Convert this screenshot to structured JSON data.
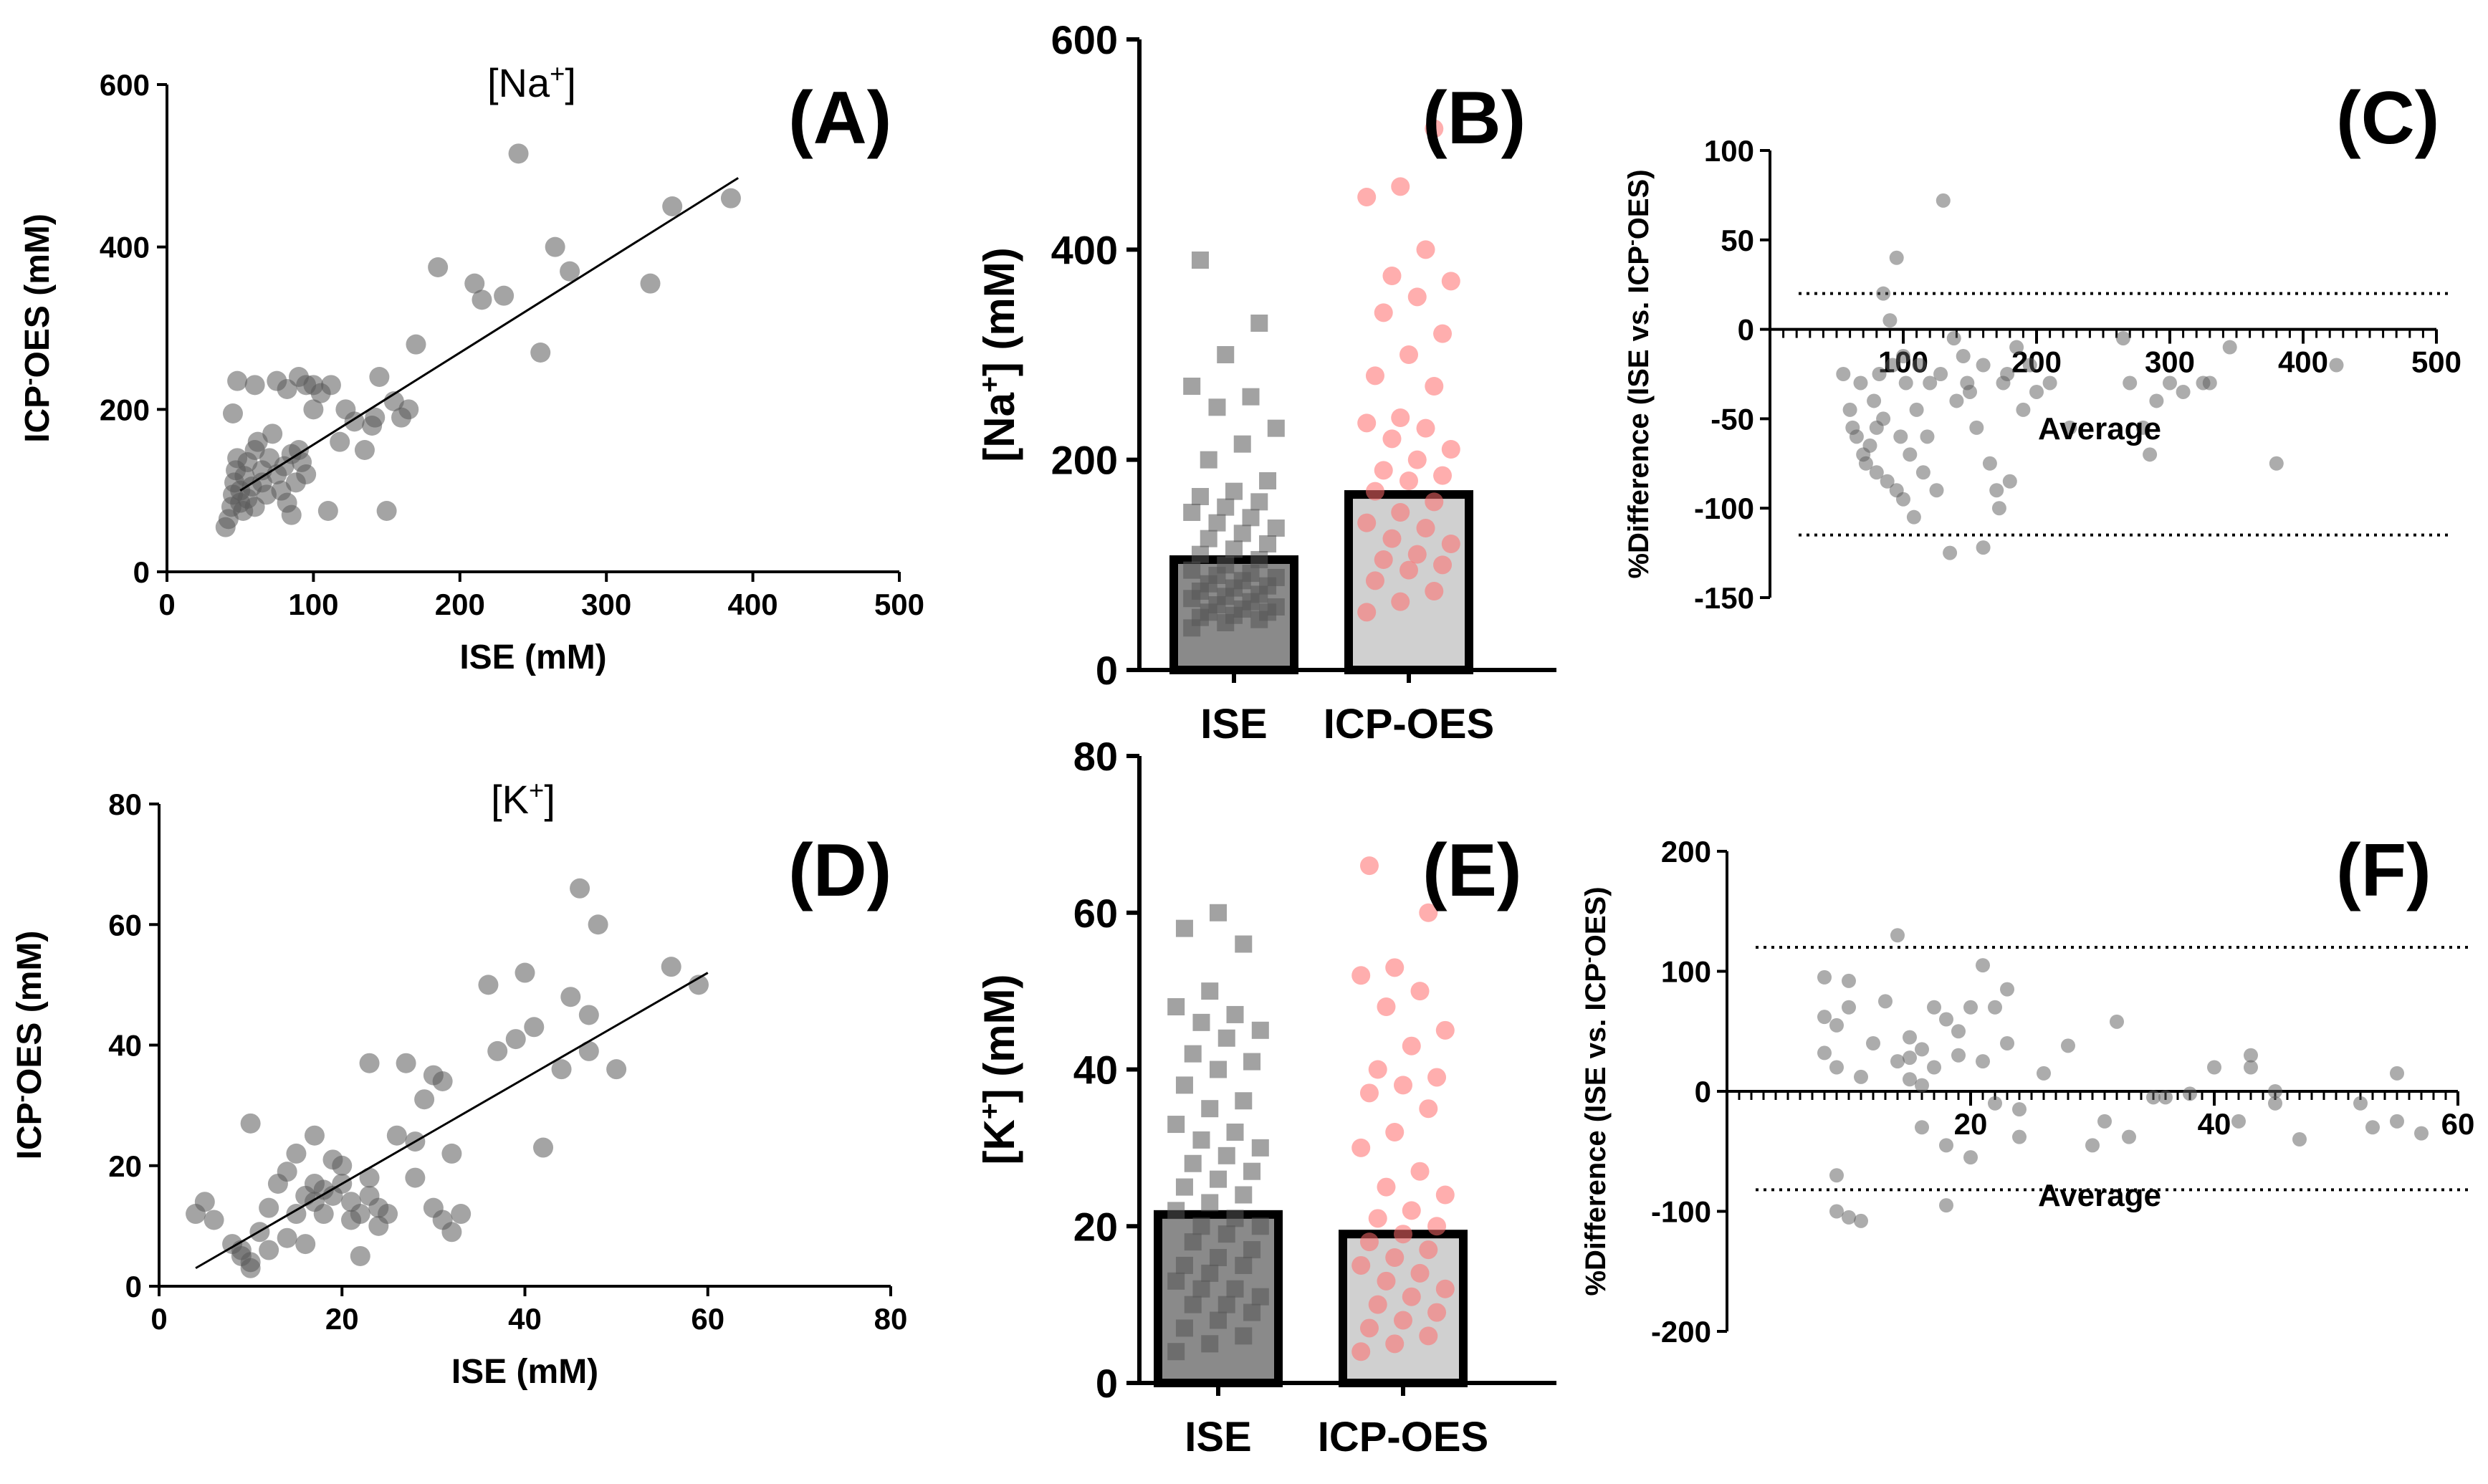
{
  "colors": {
    "axis": "#000000",
    "ise_point": "#555555",
    "icp_point": "#ff6b6b",
    "ise_bar": "#8a8a8a",
    "icp_bar": "#d0d0d0",
    "scatter_point": "#5a5a5a"
  },
  "chart_data": [
    {
      "panel": "(A)",
      "type": "scatter",
      "title": "[Na+]",
      "xlabel": "ISE (mM)",
      "ylabel": "ICP-OES (mM)",
      "xlim": [
        0,
        500
      ],
      "ylim": [
        0,
        600
      ],
      "xticks": [
        0,
        100,
        200,
        300,
        400,
        500
      ],
      "yticks": [
        0,
        200,
        400,
        600
      ],
      "regression": {
        "x0": 50,
        "y0": 100,
        "x1": 390,
        "y1": 485
      },
      "points": [
        [
          40,
          55
        ],
        [
          42,
          65
        ],
        [
          44,
          80
        ],
        [
          45,
          95
        ],
        [
          46,
          110
        ],
        [
          47,
          125
        ],
        [
          48,
          140
        ],
        [
          50,
          85
        ],
        [
          50,
          100
        ],
        [
          52,
          75
        ],
        [
          53,
          118
        ],
        [
          55,
          90
        ],
        [
          55,
          135
        ],
        [
          58,
          105
        ],
        [
          60,
          80
        ],
        [
          60,
          150
        ],
        [
          62,
          160
        ],
        [
          65,
          110
        ],
        [
          65,
          125
        ],
        [
          68,
          95
        ],
        [
          70,
          140
        ],
        [
          72,
          170
        ],
        [
          75,
          120
        ],
        [
          78,
          100
        ],
        [
          80,
          130
        ],
        [
          82,
          85
        ],
        [
          85,
          145
        ],
        [
          85,
          70
        ],
        [
          88,
          110
        ],
        [
          90,
          150
        ],
        [
          92,
          135
        ],
        [
          95,
          120
        ],
        [
          95,
          230
        ],
        [
          100,
          200
        ],
        [
          105,
          220
        ],
        [
          110,
          75
        ],
        [
          112,
          230
        ],
        [
          118,
          160
        ],
        [
          122,
          200
        ],
        [
          128,
          185
        ],
        [
          135,
          150
        ],
        [
          140,
          180
        ],
        [
          142,
          190
        ],
        [
          145,
          240
        ],
        [
          150,
          75
        ],
        [
          155,
          210
        ],
        [
          160,
          190
        ],
        [
          165,
          200
        ],
        [
          170,
          280
        ],
        [
          185,
          375
        ],
        [
          210,
          355
        ],
        [
          215,
          335
        ],
        [
          230,
          340
        ],
        [
          240,
          515
        ],
        [
          255,
          270
        ],
        [
          265,
          400
        ],
        [
          275,
          370
        ],
        [
          330,
          355
        ],
        [
          345,
          450
        ],
        [
          385,
          460
        ],
        [
          48,
          235
        ],
        [
          60,
          230
        ],
        [
          75,
          235
        ],
        [
          82,
          225
        ],
        [
          90,
          240
        ],
        [
          45,
          195
        ],
        [
          100,
          230
        ]
      ]
    },
    {
      "panel": "(B)",
      "type": "bar",
      "ylabel": "[Na+] (mM)",
      "categories": [
        "ISE",
        "ICP-OES"
      ],
      "values": [
        105,
        167
      ],
      "ylim": [
        0,
        600
      ],
      "yticks": [
        0,
        200,
        400,
        600
      ],
      "series_points": {
        "ISE": [
          40,
          45,
          48,
          50,
          52,
          55,
          55,
          58,
          60,
          62,
          65,
          68,
          70,
          72,
          75,
          78,
          80,
          82,
          85,
          88,
          90,
          92,
          95,
          100,
          105,
          110,
          115,
          120,
          125,
          130,
          135,
          140,
          145,
          150,
          155,
          160,
          165,
          170,
          180,
          200,
          215,
          230,
          250,
          260,
          270,
          300,
          330,
          390
        ],
        "ICP-OES": [
          55,
          65,
          75,
          85,
          95,
          100,
          105,
          110,
          120,
          125,
          135,
          140,
          150,
          160,
          170,
          180,
          185,
          190,
          200,
          210,
          220,
          230,
          235,
          240,
          270,
          280,
          300,
          320,
          340,
          355,
          370,
          375,
          400,
          450,
          460,
          515
        ]
      }
    },
    {
      "panel": "(C)",
      "type": "scatter",
      "xlabel": "Average",
      "ylabel": "%Difference (ISE vs. ICP-OES)",
      "xlim": [
        0,
        500
      ],
      "ylim": [
        -150,
        100
      ],
      "xticks": [
        100,
        200,
        300,
        400,
        500
      ],
      "yticks": [
        -150,
        -100,
        -50,
        0,
        50,
        100
      ],
      "ref_lines": [
        20,
        -115
      ],
      "points": [
        [
          55,
          -25
        ],
        [
          60,
          -45
        ],
        [
          62,
          -55
        ],
        [
          65,
          -60
        ],
        [
          68,
          -30
        ],
        [
          70,
          -70
        ],
        [
          72,
          -75
        ],
        [
          75,
          -65
        ],
        [
          78,
          -40
        ],
        [
          80,
          -55
        ],
        [
          80,
          -80
        ],
        [
          82,
          -25
        ],
        [
          85,
          20
        ],
        [
          85,
          -50
        ],
        [
          88,
          -85
        ],
        [
          90,
          5
        ],
        [
          92,
          -20
        ],
        [
          95,
          -90
        ],
        [
          95,
          40
        ],
        [
          98,
          -60
        ],
        [
          100,
          -95
        ],
        [
          100,
          -15
        ],
        [
          102,
          -30
        ],
        [
          105,
          -70
        ],
        [
          108,
          -105
        ],
        [
          110,
          -45
        ],
        [
          112,
          -20
        ],
        [
          115,
          -80
        ],
        [
          118,
          -60
        ],
        [
          120,
          -30
        ],
        [
          125,
          -90
        ],
        [
          128,
          -25
        ],
        [
          130,
          72
        ],
        [
          135,
          -125
        ],
        [
          140,
          -40
        ],
        [
          145,
          -15
        ],
        [
          148,
          -30
        ],
        [
          155,
          -55
        ],
        [
          160,
          -20
        ],
        [
          165,
          -75
        ],
        [
          170,
          -90
        ],
        [
          172,
          -100
        ],
        [
          175,
          -30
        ],
        [
          178,
          -25
        ],
        [
          180,
          -85
        ],
        [
          185,
          -10
        ],
        [
          190,
          -45
        ],
        [
          195,
          -20
        ],
        [
          200,
          -35
        ],
        [
          210,
          -30
        ],
        [
          225,
          -55
        ],
        [
          265,
          -5
        ],
        [
          270,
          -30
        ],
        [
          280,
          -55
        ],
        [
          285,
          -70
        ],
        [
          290,
          -40
        ],
        [
          300,
          -30
        ],
        [
          310,
          -35
        ],
        [
          325,
          -30
        ],
        [
          330,
          -30
        ],
        [
          345,
          -10
        ],
        [
          380,
          -75
        ],
        [
          425,
          -20
        ],
        [
          150,
          -35
        ],
        [
          160,
          -122
        ],
        [
          138,
          -5
        ]
      ]
    },
    {
      "panel": "(D)",
      "type": "scatter",
      "title": "[K+]",
      "xlabel": "ISE (mM)",
      "ylabel": "ICP-OES (mM)",
      "xlim": [
        0,
        80
      ],
      "ylim": [
        0,
        80
      ],
      "xticks": [
        0,
        20,
        40,
        60,
        80
      ],
      "yticks": [
        0,
        20,
        40,
        60,
        80
      ],
      "regression": {
        "x0": 4,
        "y0": 3,
        "x1": 60,
        "y1": 52
      },
      "points": [
        [
          4,
          12
        ],
        [
          5,
          14
        ],
        [
          6,
          11
        ],
        [
          8,
          7
        ],
        [
          9,
          5
        ],
        [
          9,
          6
        ],
        [
          10,
          3
        ],
        [
          10,
          4
        ],
        [
          10,
          27
        ],
        [
          11,
          9
        ],
        [
          12,
          6
        ],
        [
          12,
          13
        ],
        [
          13,
          17
        ],
        [
          14,
          8
        ],
        [
          14,
          19
        ],
        [
          15,
          12
        ],
        [
          15,
          22
        ],
        [
          16,
          15
        ],
        [
          16,
          7
        ],
        [
          17,
          14
        ],
        [
          17,
          17
        ],
        [
          17,
          25
        ],
        [
          18,
          12
        ],
        [
          18,
          16
        ],
        [
          19,
          15
        ],
        [
          19,
          21
        ],
        [
          20,
          17
        ],
        [
          20,
          20
        ],
        [
          21,
          11
        ],
        [
          21,
          14
        ],
        [
          22,
          12
        ],
        [
          22,
          5
        ],
        [
          23,
          15
        ],
        [
          23,
          18
        ],
        [
          23,
          37
        ],
        [
          24,
          10
        ],
        [
          24,
          13
        ],
        [
          25,
          12
        ],
        [
          26,
          25
        ],
        [
          27,
          37
        ],
        [
          28,
          18
        ],
        [
          28,
          24
        ],
        [
          29,
          31
        ],
        [
          30,
          35
        ],
        [
          30,
          13
        ],
        [
          31,
          34
        ],
        [
          31,
          11
        ],
        [
          32,
          9
        ],
        [
          32,
          22
        ],
        [
          33,
          12
        ],
        [
          36,
          50
        ],
        [
          37,
          39
        ],
        [
          39,
          41
        ],
        [
          40,
          52
        ],
        [
          41,
          43
        ],
        [
          42,
          23
        ],
        [
          44,
          36
        ],
        [
          45,
          48
        ],
        [
          46,
          66
        ],
        [
          47,
          39
        ],
        [
          47,
          45
        ],
        [
          48,
          60
        ],
        [
          50,
          36
        ],
        [
          56,
          53
        ],
        [
          59,
          50
        ]
      ]
    },
    {
      "panel": "(E)",
      "type": "bar",
      "ylabel": "[K+] (mM)",
      "categories": [
        "ISE",
        "ICP-OES"
      ],
      "values": [
        21.5,
        19
      ],
      "ylim": [
        0,
        80
      ],
      "yticks": [
        0,
        20,
        40,
        60,
        80
      ],
      "series_points": {
        "ISE": [
          4,
          5,
          6,
          7,
          8,
          9,
          10,
          10,
          11,
          12,
          12,
          13,
          14,
          15,
          15,
          16,
          17,
          18,
          19,
          20,
          20,
          21,
          22,
          23,
          24,
          25,
          26,
          27,
          28,
          29,
          30,
          31,
          32,
          33,
          35,
          36,
          38,
          40,
          41,
          42,
          44,
          45,
          46,
          47,
          48,
          50,
          56,
          58,
          60
        ],
        "ICP-OES": [
          4,
          5,
          6,
          7,
          8,
          9,
          10,
          11,
          12,
          13,
          14,
          15,
          16,
          17,
          18,
          19,
          20,
          21,
          22,
          24,
          25,
          27,
          30,
          32,
          35,
          37,
          38,
          39,
          40,
          43,
          45,
          48,
          50,
          52,
          53,
          60,
          66
        ]
      }
    },
    {
      "panel": "(F)",
      "type": "scatter",
      "xlabel": "Average",
      "ylabel": "%Difference (ISE vs. ICP-OES)",
      "xlim": [
        0,
        60
      ],
      "ylim": [
        -200,
        200
      ],
      "xticks": [
        20,
        40,
        60
      ],
      "yticks": [
        -200,
        -100,
        0,
        100,
        200
      ],
      "ref_lines": [
        120,
        -82
      ],
      "points": [
        [
          8,
          95
        ],
        [
          8,
          62
        ],
        [
          8,
          32
        ],
        [
          9,
          55
        ],
        [
          9,
          20
        ],
        [
          9,
          -70
        ],
        [
          9,
          -100
        ],
        [
          10,
          92
        ],
        [
          10,
          70
        ],
        [
          10,
          -105
        ],
        [
          11,
          12
        ],
        [
          11,
          -108
        ],
        [
          12,
          40
        ],
        [
          13,
          75
        ],
        [
          14,
          25
        ],
        [
          14,
          130
        ],
        [
          15,
          28
        ],
        [
          15,
          45
        ],
        [
          15,
          10
        ],
        [
          16,
          -30
        ],
        [
          16,
          5
        ],
        [
          16,
          35
        ],
        [
          17,
          70
        ],
        [
          17,
          20
        ],
        [
          18,
          60
        ],
        [
          18,
          -45
        ],
        [
          19,
          30
        ],
        [
          19,
          50
        ],
        [
          20,
          -55
        ],
        [
          20,
          70
        ],
        [
          21,
          25
        ],
        [
          21,
          105
        ],
        [
          22,
          70
        ],
        [
          22,
          -10
        ],
        [
          23,
          85
        ],
        [
          23,
          40
        ],
        [
          24,
          -15
        ],
        [
          26,
          15
        ],
        [
          28,
          38
        ],
        [
          30,
          -45
        ],
        [
          31,
          -25
        ],
        [
          32,
          58
        ],
        [
          33,
          -38
        ],
        [
          35,
          -5
        ],
        [
          36,
          -5
        ],
        [
          38,
          -2
        ],
        [
          40,
          20
        ],
        [
          42,
          -25
        ],
        [
          43,
          30
        ],
        [
          43,
          20
        ],
        [
          45,
          0
        ],
        [
          45,
          -10
        ],
        [
          47,
          -40
        ],
        [
          52,
          -10
        ],
        [
          53,
          -30
        ],
        [
          55,
          -25
        ],
        [
          55,
          15
        ],
        [
          57,
          -35
        ],
        [
          24,
          -38
        ],
        [
          18,
          -95
        ]
      ]
    }
  ]
}
